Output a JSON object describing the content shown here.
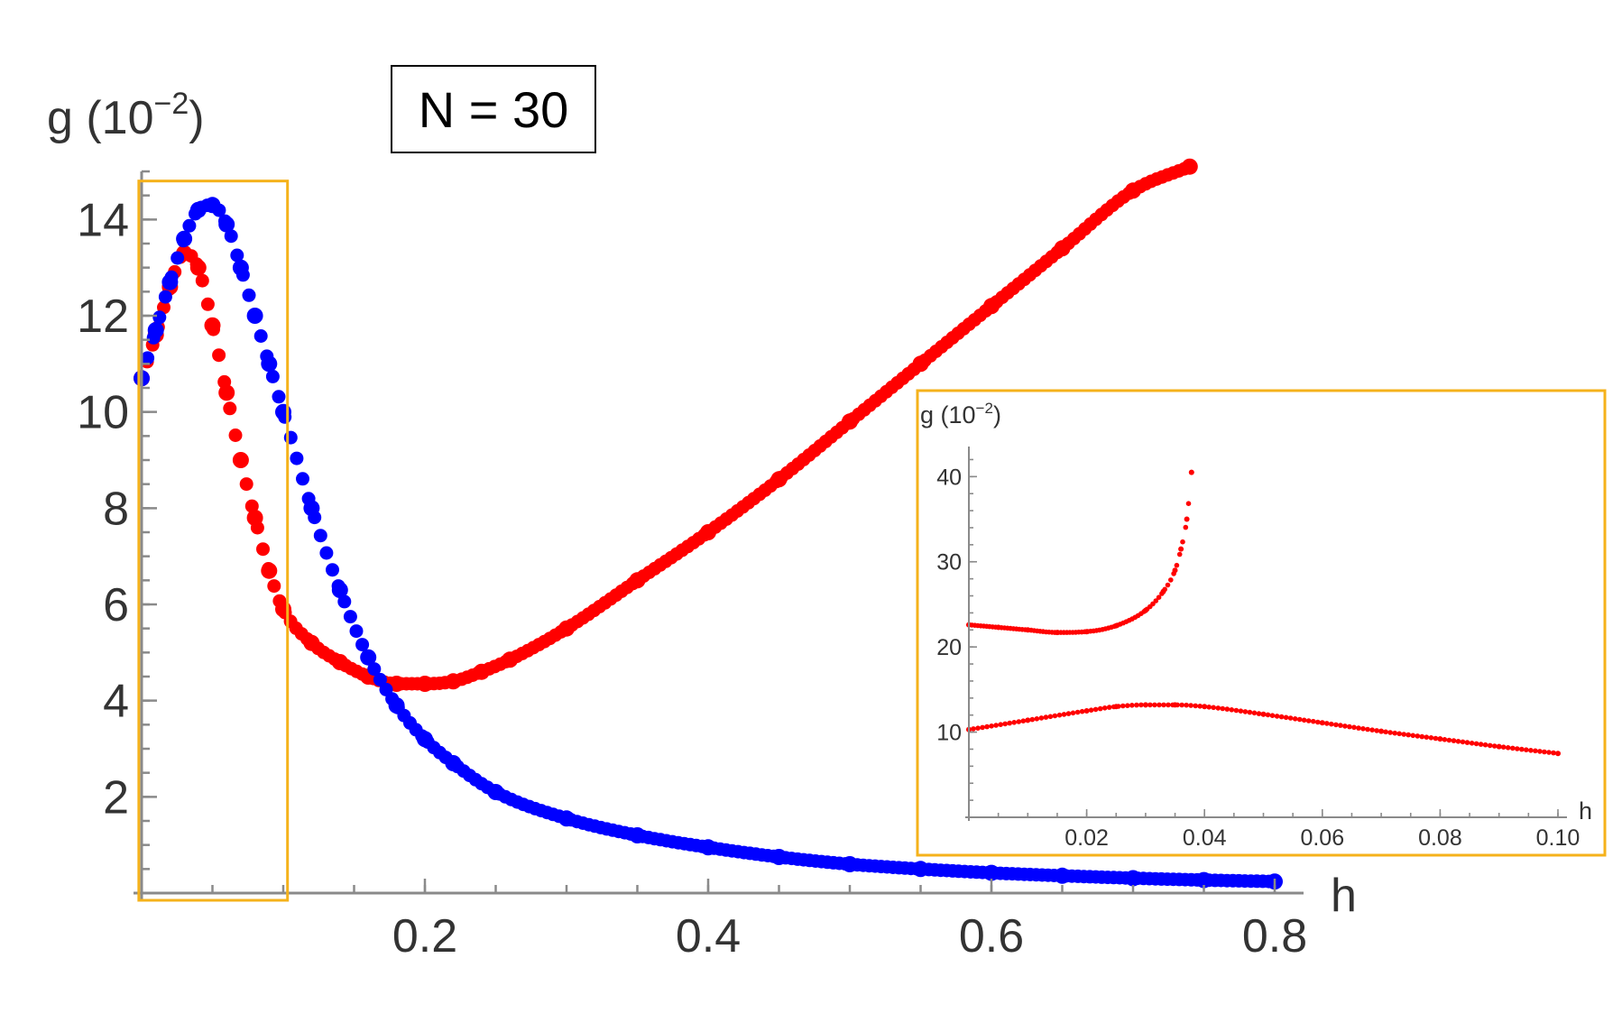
{
  "chart_data": [
    {
      "type": "scatter",
      "title": "",
      "annotation": "N = 30",
      "xlabel": "h",
      "ylabel": "g (10",
      "ylabel_exponent": "−2",
      "ylabel_close": ")",
      "xlim": [
        0,
        0.8
      ],
      "ylim": [
        0,
        15
      ],
      "xticks": [
        0.2,
        0.4,
        0.6,
        0.8
      ],
      "xtick_labels": [
        "0.2",
        "0.4",
        "0.6",
        "0.8"
      ],
      "yticks": [
        2,
        4,
        6,
        8,
        10,
        12,
        14
      ],
      "ytick_labels": [
        "2",
        "4",
        "6",
        "8",
        "10",
        "12",
        "14"
      ],
      "grid": false,
      "highlight_box_x": [
        -0.002,
        0.103
      ],
      "highlight_box_y": [
        -0.15,
        14.8
      ],
      "series": [
        {
          "color": "#ff0000",
          "x": [
            0.0,
            0.01,
            0.02,
            0.03,
            0.04,
            0.05,
            0.06,
            0.07,
            0.08,
            0.09,
            0.1,
            0.12,
            0.14,
            0.16,
            0.18,
            0.2,
            0.22,
            0.24,
            0.26,
            0.3,
            0.35,
            0.4,
            0.45,
            0.5,
            0.55,
            0.6,
            0.65,
            0.7,
            0.74
          ],
          "y": [
            10.7,
            11.6,
            12.6,
            13.3,
            13.0,
            11.8,
            10.4,
            9.0,
            7.8,
            6.7,
            5.9,
            5.2,
            4.8,
            4.5,
            4.35,
            4.35,
            4.4,
            4.6,
            4.85,
            5.5,
            6.5,
            7.5,
            8.6,
            9.8,
            11.0,
            12.2,
            13.4,
            14.6,
            15.1
          ]
        },
        {
          "color": "#0000ff",
          "x": [
            0.0,
            0.01,
            0.02,
            0.03,
            0.04,
            0.05,
            0.06,
            0.07,
            0.08,
            0.09,
            0.1,
            0.12,
            0.14,
            0.16,
            0.18,
            0.2,
            0.22,
            0.25,
            0.3,
            0.35,
            0.4,
            0.45,
            0.5,
            0.55,
            0.6,
            0.65,
            0.7,
            0.75,
            0.8
          ],
          "y": [
            10.7,
            11.7,
            12.7,
            13.6,
            14.2,
            14.3,
            13.9,
            13.0,
            12.0,
            11.0,
            10.0,
            8.0,
            6.3,
            4.9,
            3.9,
            3.2,
            2.7,
            2.1,
            1.55,
            1.2,
            0.95,
            0.75,
            0.6,
            0.5,
            0.42,
            0.36,
            0.31,
            0.27,
            0.24
          ]
        }
      ]
    },
    {
      "type": "scatter",
      "title": "",
      "xlabel": "h",
      "ylabel": "g (10",
      "ylabel_exponent": "−2",
      "ylabel_close": ")",
      "xlim": [
        0,
        0.1
      ],
      "ylim": [
        0,
        43
      ],
      "xticks": [
        0.02,
        0.04,
        0.06,
        0.08,
        0.1
      ],
      "xtick_labels": [
        "0.02",
        "0.04",
        "0.06",
        "0.08",
        "0.10"
      ],
      "yticks": [
        10,
        20,
        30,
        40
      ],
      "ytick_labels": [
        "10",
        "20",
        "30",
        "40"
      ],
      "grid": false,
      "series": [
        {
          "color": "#ff0000",
          "x": [
            0.0,
            0.005,
            0.01,
            0.015,
            0.02,
            0.025,
            0.03,
            0.033,
            0.035,
            0.036,
            0.037,
            0.0378
          ],
          "y": [
            22.6,
            22.3,
            22.0,
            21.7,
            21.8,
            22.5,
            24.3,
            26.5,
            29.0,
            31.5,
            35.0,
            40.5
          ]
        },
        {
          "color": "#ff0000",
          "x": [
            0.0,
            0.01,
            0.02,
            0.025,
            0.03,
            0.035,
            0.04,
            0.05,
            0.06,
            0.07,
            0.08,
            0.09,
            0.1
          ],
          "y": [
            10.3,
            11.4,
            12.5,
            13.0,
            13.2,
            13.2,
            13.0,
            12.1,
            11.1,
            10.1,
            9.2,
            8.3,
            7.5
          ]
        }
      ]
    }
  ]
}
